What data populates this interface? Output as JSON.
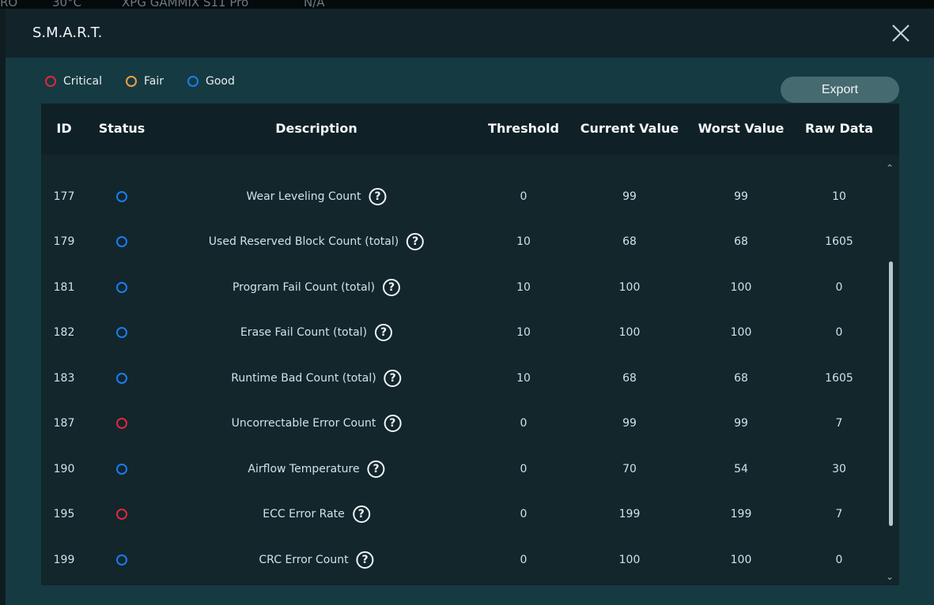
{
  "background": {
    "items": [
      "RO",
      "30°C",
      "XPG GAMMIX S11 Pro",
      "N/A"
    ]
  },
  "modal": {
    "title": "S.M.A.R.T.",
    "legend": [
      {
        "label": "Critical",
        "color": "#e0283c"
      },
      {
        "label": "Fair",
        "color": "#f0a040"
      },
      {
        "label": "Good",
        "color": "#1a7cf0"
      }
    ],
    "export_label": "Export",
    "columns": [
      "ID",
      "Status",
      "Description",
      "Threshold",
      "Current Value",
      "Worst Value",
      "Raw Data"
    ],
    "rows": [
      {
        "id": "177",
        "status": "Good",
        "description": "Wear Leveling Count",
        "threshold": "0",
        "current": "99",
        "worst": "99",
        "raw": "10"
      },
      {
        "id": "179",
        "status": "Good",
        "description": "Used Reserved Block Count (total)",
        "threshold": "10",
        "current": "68",
        "worst": "68",
        "raw": "1605"
      },
      {
        "id": "181",
        "status": "Good",
        "description": "Program Fail Count (total)",
        "threshold": "10",
        "current": "100",
        "worst": "100",
        "raw": "0"
      },
      {
        "id": "182",
        "status": "Good",
        "description": "Erase Fail Count (total)",
        "threshold": "10",
        "current": "100",
        "worst": "100",
        "raw": "0"
      },
      {
        "id": "183",
        "status": "Good",
        "description": "Runtime Bad Count (total)",
        "threshold": "10",
        "current": "68",
        "worst": "68",
        "raw": "1605"
      },
      {
        "id": "187",
        "status": "Critical",
        "description": "Uncorrectable Error Count",
        "threshold": "0",
        "current": "99",
        "worst": "99",
        "raw": "7"
      },
      {
        "id": "190",
        "status": "Good",
        "description": "Airflow Temperature",
        "threshold": "0",
        "current": "70",
        "worst": "54",
        "raw": "30"
      },
      {
        "id": "195",
        "status": "Critical",
        "description": "ECC Error Rate",
        "threshold": "0",
        "current": "199",
        "worst": "199",
        "raw": "7"
      },
      {
        "id": "199",
        "status": "Good",
        "description": "CRC Error Count",
        "threshold": "0",
        "current": "100",
        "worst": "100",
        "raw": "0"
      }
    ],
    "help_glyph": "?"
  }
}
